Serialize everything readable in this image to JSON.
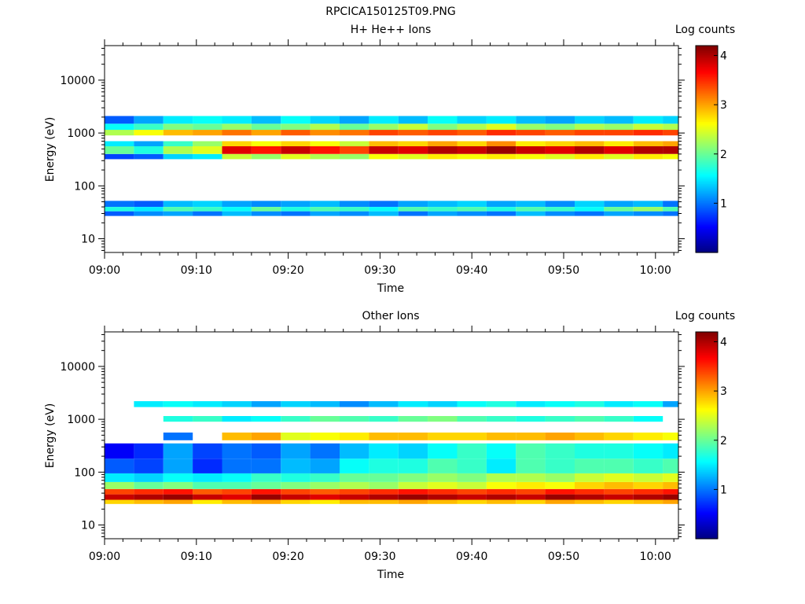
{
  "figure_title": "RPCICA150125T09.PNG",
  "colors": {
    "colormap": "jet",
    "colormap_stops": [
      "#00007f",
      "#0000ff",
      "#007fff",
      "#00ffff",
      "#7fff7f",
      "#ffff00",
      "#ff7f00",
      "#ff0000",
      "#7f0000"
    ]
  },
  "chart_data": [
    {
      "type": "heatmap",
      "title": "H+ He++ Ions",
      "xlabel": "Time",
      "ylabel": "Energy (eV)",
      "x_ticks": [
        "09:00",
        "09:10",
        "09:20",
        "09:30",
        "09:40",
        "09:50",
        "10:00"
      ],
      "x_range_min": [
        0,
        62.5
      ],
      "y_scale": "log",
      "y_ticks": [
        "10",
        "100",
        "1000",
        "10000"
      ],
      "y_range_eV": [
        5.5,
        45000
      ],
      "colorbar": {
        "label": "Log counts",
        "ticks": [
          "1",
          "2",
          "3",
          "4"
        ],
        "range": [
          0,
          4.2
        ]
      },
      "time_bins_start_min": [
        0,
        3.2,
        6.4,
        9.6,
        12.8,
        16.0,
        19.2,
        22.4,
        25.6,
        28.8,
        32.0,
        35.2,
        38.4,
        41.6,
        44.8,
        48.0,
        51.2,
        54.4,
        57.6,
        60.8
      ],
      "time_bin_width_min": 3.2,
      "bands": [
        {
          "e_min": 400,
          "e_max": 560,
          "values": [
            2.0,
            1.7,
            2.3,
            2.5,
            3.8,
            3.6,
            3.9,
            3.6,
            3.4,
            3.9,
            3.8,
            4.0,
            3.9,
            4.1,
            3.9,
            3.8,
            4.0,
            3.8,
            4.0,
            4.0
          ]
        },
        {
          "e_min": 560,
          "e_max": 700,
          "values": [
            1.5,
            1.2,
            1.8,
            2.2,
            2.8,
            2.6,
            2.8,
            2.6,
            2.4,
            2.9,
            2.8,
            3.0,
            2.8,
            3.1,
            2.7,
            2.8,
            2.9,
            2.7,
            2.9,
            3.0
          ]
        },
        {
          "e_min": 320,
          "e_max": 400,
          "values": [
            0.8,
            0.9,
            1.4,
            1.5,
            2.4,
            2.2,
            2.5,
            2.3,
            2.2,
            2.6,
            2.5,
            2.7,
            2.6,
            2.7,
            2.6,
            2.5,
            2.7,
            2.5,
            2.7,
            2.6
          ]
        },
        {
          "e_min": 900,
          "e_max": 1150,
          "values": [
            2.3,
            2.6,
            2.9,
            3.0,
            3.2,
            3.0,
            3.3,
            3.1,
            3.2,
            3.4,
            3.3,
            3.4,
            3.3,
            3.5,
            3.4,
            3.3,
            3.4,
            3.4,
            3.5,
            3.4
          ]
        },
        {
          "e_min": 1150,
          "e_max": 1500,
          "values": [
            1.6,
            1.8,
            2.1,
            2.0,
            2.2,
            2.0,
            2.1,
            2.3,
            2.0,
            2.2,
            2.4,
            2.1,
            2.3,
            2.5,
            2.2,
            2.1,
            2.3,
            2.2,
            2.4,
            2.3
          ]
        },
        {
          "e_min": 1500,
          "e_max": 2100,
          "values": [
            0.9,
            1.2,
            1.5,
            1.6,
            1.5,
            1.3,
            1.6,
            1.4,
            1.2,
            1.5,
            1.3,
            1.6,
            1.4,
            1.5,
            1.3,
            1.2,
            1.4,
            1.3,
            1.5,
            1.4
          ]
        },
        {
          "e_min": 40,
          "e_max": 52,
          "values": [
            1.0,
            0.9,
            1.3,
            1.4,
            1.2,
            1.1,
            1.2,
            1.3,
            1.1,
            1.0,
            1.2,
            1.3,
            1.4,
            1.2,
            1.3,
            1.1,
            1.4,
            1.2,
            1.3,
            1.0
          ]
        },
        {
          "e_min": 33,
          "e_max": 40,
          "values": [
            1.7,
            1.5,
            1.9,
            1.8,
            1.6,
            2.0,
            1.7,
            1.9,
            1.8,
            1.6,
            1.9,
            1.8,
            1.9,
            1.7,
            1.9,
            1.8,
            1.6,
            2.0,
            2.2,
            1.9
          ]
        },
        {
          "e_min": 27,
          "e_max": 33,
          "values": [
            0.9,
            1.1,
            1.2,
            1.0,
            1.3,
            1.1,
            1.0,
            1.2,
            1.1,
            1.3,
            1.0,
            1.2,
            1.1,
            1.0,
            1.3,
            1.1,
            1.0,
            1.2,
            1.1,
            1.0
          ]
        }
      ]
    },
    {
      "type": "heatmap",
      "title": "Other Ions",
      "xlabel": "Time",
      "ylabel": "Energy (eV)",
      "x_ticks": [
        "09:00",
        "09:10",
        "09:20",
        "09:30",
        "09:40",
        "09:50",
        "10:00"
      ],
      "x_range_min": [
        0,
        62.5
      ],
      "y_scale": "log",
      "y_ticks": [
        "10",
        "100",
        "1000",
        "10000"
      ],
      "y_range_eV": [
        5.5,
        45000
      ],
      "colorbar": {
        "label": "Log counts",
        "ticks": [
          "1",
          "2",
          "3",
          "4"
        ],
        "range": [
          0,
          4.2
        ]
      },
      "time_bins_start_min": [
        0,
        3.2,
        6.4,
        9.6,
        12.8,
        16.0,
        19.2,
        22.4,
        25.6,
        28.8,
        32.0,
        35.2,
        38.4,
        41.6,
        44.8,
        48.0,
        51.2,
        54.4,
        57.6,
        60.8
      ],
      "time_bin_width_min": 3.2,
      "bands": [
        {
          "e_min": 30,
          "e_max": 38,
          "values": [
            3.9,
            4.0,
            4.1,
            3.9,
            3.8,
            4.1,
            3.9,
            3.8,
            3.9,
            4.0,
            4.1,
            4.0,
            3.9,
            4.0,
            3.9,
            4.1,
            4.0,
            3.9,
            4.0,
            4.1
          ]
        },
        {
          "e_min": 38,
          "e_max": 48,
          "values": [
            3.4,
            3.5,
            3.6,
            3.3,
            3.4,
            3.6,
            3.4,
            3.3,
            3.4,
            3.5,
            3.6,
            3.5,
            3.4,
            3.5,
            3.4,
            3.6,
            3.5,
            3.4,
            3.5,
            3.6
          ]
        },
        {
          "e_min": 25,
          "e_max": 30,
          "values": [
            2.8,
            2.9,
            3.0,
            2.7,
            2.9,
            3.0,
            2.8,
            2.7,
            2.9,
            2.9,
            3.0,
            2.9,
            2.8,
            2.9,
            2.8,
            3.0,
            2.9,
            2.8,
            2.9,
            3.0
          ]
        },
        {
          "e_min": 48,
          "e_max": 65,
          "values": [
            2.2,
            2.0,
            2.1,
            1.9,
            1.9,
            2.0,
            2.1,
            2.2,
            2.3,
            2.2,
            2.4,
            2.5,
            2.4,
            2.6,
            2.7,
            2.6,
            2.8,
            2.9,
            2.8,
            2.9
          ]
        },
        {
          "e_min": 65,
          "e_max": 95,
          "values": [
            1.5,
            1.4,
            1.6,
            1.5,
            1.6,
            1.8,
            1.7,
            1.8,
            2.0,
            2.0,
            2.1,
            2.2,
            2.1,
            2.3,
            2.3,
            2.2,
            2.4,
            2.5,
            2.4,
            2.5
          ]
        },
        {
          "e_min": 95,
          "e_max": 180,
          "values": [
            0.9,
            0.8,
            1.2,
            0.7,
            1.0,
            1.0,
            1.3,
            1.2,
            1.6,
            1.7,
            1.7,
            1.9,
            1.8,
            1.5,
            1.9,
            1.8,
            1.9,
            1.9,
            1.8,
            1.9
          ]
        },
        {
          "e_min": 180,
          "e_max": 350,
          "values": [
            0.5,
            0.7,
            1.2,
            0.8,
            1.0,
            0.9,
            1.2,
            1.0,
            1.3,
            1.5,
            1.4,
            1.6,
            1.8,
            1.6,
            1.9,
            1.8,
            1.7,
            1.7,
            1.6,
            1.5
          ]
        },
        {
          "e_min": 400,
          "e_max": 560,
          "values": [
            0.0,
            0.0,
            1.0,
            0.0,
            2.9,
            3.0,
            2.5,
            2.6,
            2.7,
            2.9,
            2.9,
            2.8,
            2.8,
            2.9,
            2.9,
            3.0,
            2.9,
            2.8,
            2.7,
            2.6
          ]
        },
        {
          "e_min": 900,
          "e_max": 1150,
          "values": [
            0.0,
            0.0,
            1.7,
            1.8,
            1.5,
            1.6,
            1.8,
            2.0,
            1.9,
            1.8,
            2.0,
            2.1,
            1.9,
            1.8,
            1.7,
            1.8,
            1.9,
            1.8,
            1.6,
            0.0
          ]
        },
        {
          "e_min": 1700,
          "e_max": 2200,
          "values": [
            0.0,
            1.5,
            1.6,
            1.5,
            1.4,
            1.2,
            1.4,
            1.3,
            1.1,
            1.3,
            1.5,
            1.4,
            1.6,
            1.7,
            1.5,
            1.6,
            1.7,
            1.5,
            1.6,
            1.2
          ]
        }
      ]
    }
  ]
}
